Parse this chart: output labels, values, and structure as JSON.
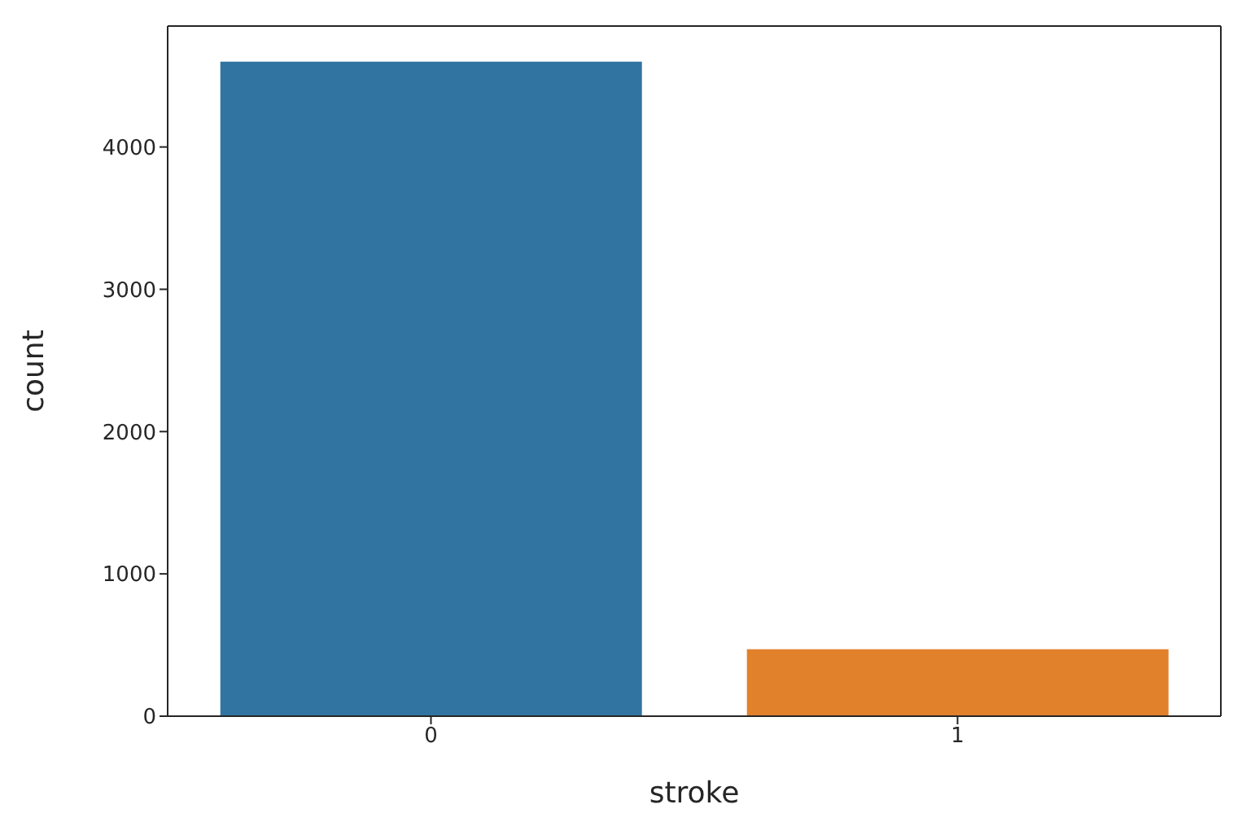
{
  "chart_data": {
    "type": "bar",
    "xlabel": "stroke",
    "ylabel": "count",
    "categories": [
      "0",
      "1"
    ],
    "values": [
      4600,
      470
    ],
    "colors": [
      "#3274a1",
      "#e1812c"
    ],
    "ylim": [
      0,
      4850
    ],
    "yticks": [
      0,
      1000,
      2000,
      3000,
      4000
    ],
    "grid": false,
    "legend": false
  }
}
